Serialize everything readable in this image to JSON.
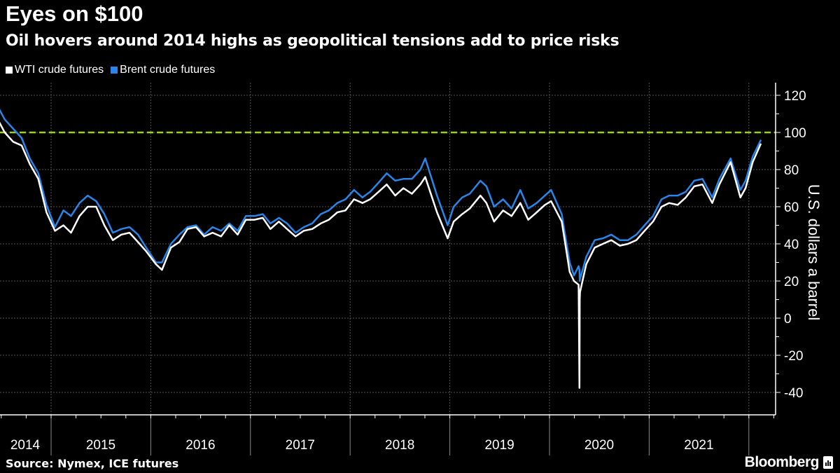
{
  "header": {
    "title": "Eyes on $100",
    "subtitle": "Oil hovers around 2014 highs as geopolitical tensions add to price risks"
  },
  "footer": {
    "source": "Source: Nymex, ICE futures",
    "brand": "Bloomberg"
  },
  "chart_data": {
    "type": "line",
    "title": "Eyes on $100",
    "subtitle": "Oil hovers around 2014 highs as geopolitical tensions add to price risks",
    "ylabel": "U.S. dollars a barrel",
    "xlabel": "",
    "ylim": [
      -53,
      127
    ],
    "yticks": [
      120,
      100,
      80,
      60,
      40,
      20,
      0,
      -20,
      -40
    ],
    "xticks": [
      "2014",
      "2015",
      "2016",
      "2017",
      "2018",
      "2019",
      "2020",
      "2021"
    ],
    "grid": true,
    "legend_position": "top-left",
    "reference_line": {
      "value": 100,
      "style": "dashed",
      "color": "#9ACD32"
    },
    "series": [
      {
        "name": "WTI crude futures",
        "color": "#FFFFFF",
        "dates": [
          "2014-06-20",
          "2014-07-15",
          "2014-08-15",
          "2014-09-15",
          "2014-10-15",
          "2014-11-15",
          "2014-12-15",
          "2015-01-15",
          "2015-02-15",
          "2015-03-15",
          "2015-04-15",
          "2015-05-15",
          "2015-06-15",
          "2015-07-15",
          "2015-08-15",
          "2015-09-15",
          "2015-10-15",
          "2015-11-15",
          "2015-12-15",
          "2016-01-20",
          "2016-02-11",
          "2016-03-15",
          "2016-04-15",
          "2016-05-15",
          "2016-06-15",
          "2016-07-15",
          "2016-08-15",
          "2016-09-15",
          "2016-10-15",
          "2016-11-15",
          "2016-12-15",
          "2017-01-15",
          "2017-02-15",
          "2017-03-15",
          "2017-04-15",
          "2017-05-15",
          "2017-06-15",
          "2017-07-15",
          "2017-08-15",
          "2017-09-15",
          "2017-10-15",
          "2017-11-15",
          "2017-12-15",
          "2018-01-15",
          "2018-02-15",
          "2018-03-15",
          "2018-04-15",
          "2018-05-15",
          "2018-06-15",
          "2018-07-15",
          "2018-08-15",
          "2018-09-15",
          "2018-10-03",
          "2018-11-15",
          "2018-12-24",
          "2019-01-15",
          "2019-02-15",
          "2019-03-15",
          "2019-04-23",
          "2019-05-15",
          "2019-06-12",
          "2019-07-15",
          "2019-08-15",
          "2019-09-16",
          "2019-10-15",
          "2019-11-15",
          "2019-12-15",
          "2020-01-07",
          "2020-02-15",
          "2020-03-15",
          "2020-03-31",
          "2020-04-17",
          "2020-04-20",
          "2020-04-21",
          "2020-04-22",
          "2020-05-15",
          "2020-06-15",
          "2020-07-15",
          "2020-08-15",
          "2020-09-15",
          "2020-10-15",
          "2020-11-15",
          "2020-12-15",
          "2021-01-15",
          "2021-02-15",
          "2021-03-15",
          "2021-04-15",
          "2021-05-15",
          "2021-06-15",
          "2021-07-15",
          "2021-08-20",
          "2021-09-15",
          "2021-10-26",
          "2021-12-01",
          "2021-12-20",
          "2022-01-15",
          "2022-02-14"
        ],
        "values": [
          107,
          100,
          95,
          93,
          83,
          75,
          57,
          47,
          50,
          46,
          55,
          60,
          60,
          50,
          42,
          45,
          46,
          41,
          36,
          29,
          26,
          38,
          41,
          48,
          49,
          44,
          46,
          44,
          50,
          45,
          53,
          53,
          54,
          48,
          52,
          48,
          44,
          47,
          48,
          51,
          53,
          57,
          58,
          64,
          62,
          64,
          68,
          72,
          66,
          70,
          67,
          72,
          76,
          57,
          43,
          52,
          56,
          59,
          66,
          62,
          52,
          58,
          55,
          62,
          53,
          57,
          61,
          63,
          52,
          25,
          20,
          18,
          -37.6,
          10,
          14,
          29,
          38,
          40,
          42,
          39,
          40,
          42,
          47,
          52,
          60,
          62,
          61,
          65,
          71,
          72,
          62,
          72,
          84,
          65,
          70,
          84,
          94
        ]
      },
      {
        "name": "Brent crude futures",
        "color": "#2A85E8",
        "dates": [
          "2014-06-20",
          "2014-07-15",
          "2014-08-15",
          "2014-09-15",
          "2014-10-15",
          "2014-11-15",
          "2014-12-15",
          "2015-01-15",
          "2015-02-15",
          "2015-03-15",
          "2015-04-15",
          "2015-05-15",
          "2015-06-15",
          "2015-07-15",
          "2015-08-15",
          "2015-09-15",
          "2015-10-15",
          "2015-11-15",
          "2015-12-15",
          "2016-01-20",
          "2016-02-11",
          "2016-03-15",
          "2016-04-15",
          "2016-05-15",
          "2016-06-15",
          "2016-07-15",
          "2016-08-15",
          "2016-09-15",
          "2016-10-15",
          "2016-11-15",
          "2016-12-15",
          "2017-01-15",
          "2017-02-15",
          "2017-03-15",
          "2017-04-15",
          "2017-05-15",
          "2017-06-15",
          "2017-07-15",
          "2017-08-15",
          "2017-09-15",
          "2017-10-15",
          "2017-11-15",
          "2017-12-15",
          "2018-01-15",
          "2018-02-15",
          "2018-03-15",
          "2018-04-15",
          "2018-05-15",
          "2018-06-15",
          "2018-07-15",
          "2018-08-15",
          "2018-09-15",
          "2018-10-03",
          "2018-11-15",
          "2018-12-24",
          "2019-01-15",
          "2019-02-15",
          "2019-03-15",
          "2019-04-23",
          "2019-05-15",
          "2019-06-12",
          "2019-07-15",
          "2019-08-15",
          "2019-09-16",
          "2019-10-15",
          "2019-11-15",
          "2019-12-15",
          "2020-01-07",
          "2020-02-15",
          "2020-03-15",
          "2020-03-31",
          "2020-04-17",
          "2020-04-20",
          "2020-04-21",
          "2020-04-22",
          "2020-05-15",
          "2020-06-15",
          "2020-07-15",
          "2020-08-15",
          "2020-09-15",
          "2020-10-15",
          "2020-11-15",
          "2020-12-15",
          "2021-01-15",
          "2021-02-15",
          "2021-03-15",
          "2021-04-15",
          "2021-05-15",
          "2021-06-15",
          "2021-07-15",
          "2021-08-20",
          "2021-09-15",
          "2021-10-26",
          "2021-12-01",
          "2021-12-20",
          "2022-01-15",
          "2022-02-14"
        ],
        "values": [
          114,
          107,
          102,
          97,
          86,
          78,
          61,
          49,
          58,
          55,
          62,
          66,
          63,
          56,
          46,
          48,
          49,
          45,
          38,
          30,
          30,
          40,
          45,
          49,
          50,
          45,
          49,
          47,
          51,
          47,
          55,
          55,
          56,
          51,
          54,
          51,
          46,
          49,
          51,
          56,
          58,
          62,
          64,
          69,
          65,
          68,
          73,
          78,
          74,
          75,
          75,
          80,
          86,
          66,
          50,
          60,
          65,
          67,
          74,
          71,
          60,
          64,
          59,
          69,
          59,
          62,
          66,
          69,
          56,
          30,
          23,
          28,
          26,
          20,
          21,
          33,
          42,
          43,
          45,
          42,
          42,
          45,
          50,
          55,
          64,
          66,
          66,
          68,
          74,
          75,
          65,
          75,
          86,
          69,
          74,
          87,
          96
        ]
      }
    ]
  }
}
